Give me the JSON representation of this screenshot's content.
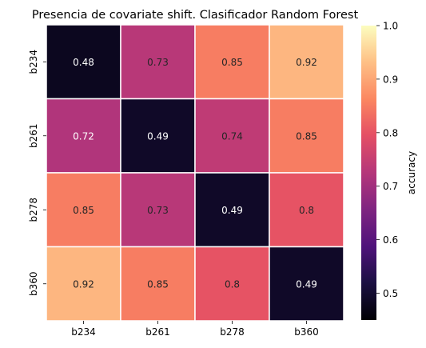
{
  "chart_data": {
    "type": "heatmap",
    "title": "Presencia de covariate shift. Clasificador Random Forest",
    "x_categories": [
      "b234",
      "b261",
      "b278",
      "b360"
    ],
    "y_categories": [
      "b234",
      "b261",
      "b278",
      "b360"
    ],
    "values": [
      [
        0.48,
        0.73,
        0.85,
        0.92
      ],
      [
        0.72,
        0.49,
        0.74,
        0.85
      ],
      [
        0.85,
        0.73,
        0.49,
        0.8
      ],
      [
        0.92,
        0.85,
        0.8,
        0.49
      ]
    ],
    "colorbar": {
      "label": "accuracy",
      "range": [
        0.45,
        1.0
      ],
      "ticks": [
        "0.5",
        "0.6",
        "0.7",
        "0.8",
        "0.9",
        "1.0"
      ],
      "tick_values": [
        0.5,
        0.6,
        0.7,
        0.8,
        0.9,
        1.0
      ]
    },
    "colormap": "magma",
    "cell_border_color": "#ffffff",
    "grid": false
  }
}
